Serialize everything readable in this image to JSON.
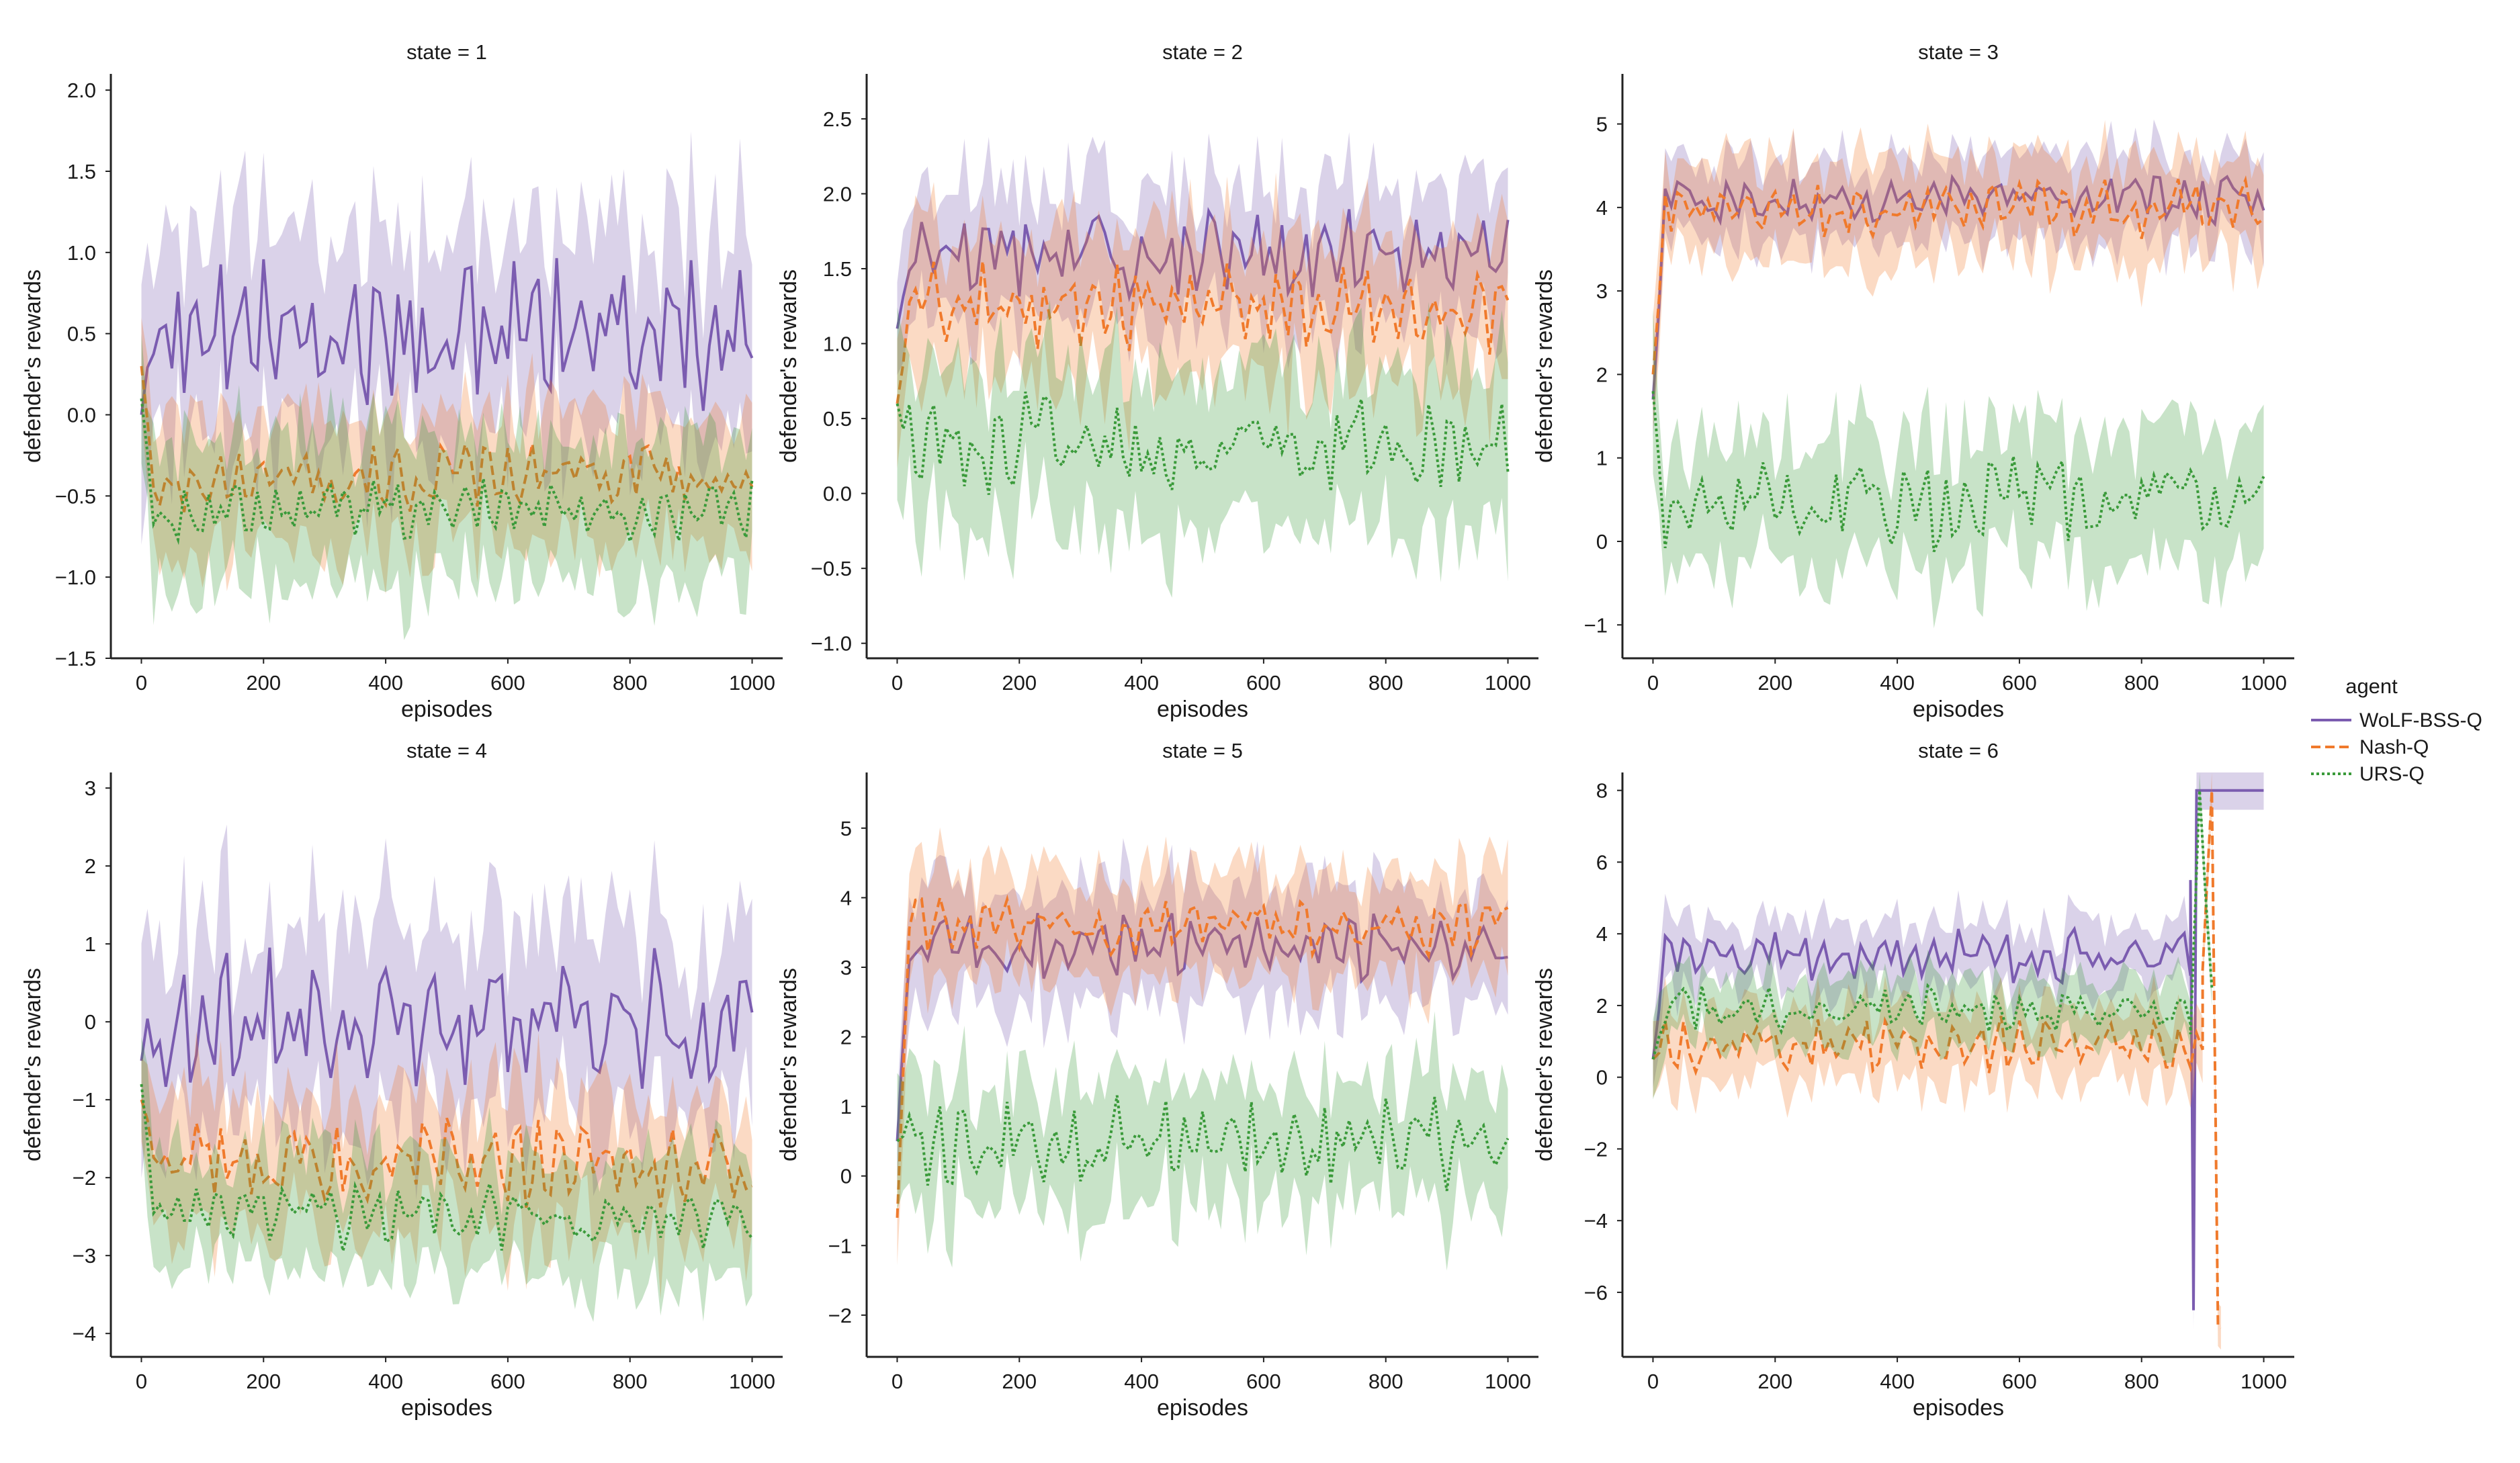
{
  "figure": {
    "legend_title": "agent",
    "legend_position": "right-center",
    "xlabel": "episodes",
    "ylabel": "defender's rewards"
  },
  "agents": [
    {
      "name": "WoLF-BSS-Q",
      "color": "#7b5cb0",
      "dash": "solid"
    },
    {
      "name": "Nash-Q",
      "color": "#f07a2c",
      "dash": "dashed"
    },
    {
      "name": "URS-Q",
      "color": "#3a9a3a",
      "dash": "dotted"
    }
  ],
  "chart_data": [
    {
      "type": "line",
      "title": "state = 1",
      "xlabel": "episodes",
      "ylabel": "defender's rewards",
      "xlim": [
        -50,
        1050
      ],
      "ylim": [
        -1.5,
        2.1
      ],
      "xticks": [
        0,
        200,
        400,
        600,
        800,
        1000
      ],
      "yticks": [
        -1.5,
        -1.0,
        -0.5,
        0.0,
        0.5,
        1.0,
        1.5,
        2.0
      ],
      "ytick_labels": [
        "−1.5",
        "−1.0",
        "−0.5",
        "0.0",
        "0.5",
        "1.0",
        "1.5",
        "2.0"
      ],
      "series": [
        {
          "name": "WoLF-BSS-Q",
          "mean": 0.5,
          "amp": 0.35,
          "band": 0.6,
          "start": 0.0,
          "seed": 11
        },
        {
          "name": "Nash-Q",
          "mean": -0.38,
          "amp": 0.15,
          "band": 0.42,
          "start": 0.3,
          "seed": 12
        },
        {
          "name": "URS-Q",
          "mean": -0.6,
          "amp": 0.15,
          "band": 0.45,
          "start": 0.1,
          "seed": 13
        }
      ]
    },
    {
      "type": "line",
      "title": "state = 2",
      "xlabel": "episodes",
      "ylabel": "defender's rewards",
      "xlim": [
        -50,
        1050
      ],
      "ylim": [
        -1.1,
        2.8
      ],
      "xticks": [
        0,
        200,
        400,
        600,
        800,
        1000
      ],
      "yticks": [
        -1.0,
        -0.5,
        0.0,
        0.5,
        1.0,
        1.5,
        2.0,
        2.5
      ],
      "ytick_labels": [
        "−1.0",
        "−0.5",
        "0.0",
        "0.5",
        "1.0",
        "1.5",
        "2.0",
        "2.5"
      ],
      "series": [
        {
          "name": "WoLF-BSS-Q",
          "mean": 1.6,
          "amp": 0.22,
          "band": 0.45,
          "start": 1.1,
          "seed": 21
        },
        {
          "name": "Nash-Q",
          "mean": 1.25,
          "amp": 0.22,
          "band": 0.5,
          "start": 0.6,
          "seed": 22
        },
        {
          "name": "URS-Q",
          "mean": 0.35,
          "amp": 0.25,
          "band": 0.55,
          "start": 0.6,
          "seed": 23
        }
      ]
    },
    {
      "type": "line",
      "title": "state = 3",
      "xlabel": "episodes",
      "ylabel": "defender's rewards",
      "xlim": [
        -50,
        1050
      ],
      "ylim": [
        -1.4,
        5.6
      ],
      "xticks": [
        0,
        200,
        400,
        600,
        800,
        1000
      ],
      "yticks": [
        -1,
        0,
        1,
        2,
        3,
        4,
        5
      ],
      "ytick_labels": [
        "−1",
        "0",
        "1",
        "2",
        "3",
        "4",
        "5"
      ],
      "series": [
        {
          "name": "WoLF-BSS-Q",
          "mean": 4.1,
          "amp": 0.22,
          "band": 0.5,
          "start": 1.7,
          "seed": 31
        },
        {
          "name": "Nash-Q",
          "mean": 4.0,
          "amp": 0.25,
          "band": 0.6,
          "start": 2.0,
          "seed": 32
        },
        {
          "name": "URS-Q",
          "mean": 0.45,
          "amp": 0.4,
          "band": 0.75,
          "start": 1.8,
          "seed": 33
        }
      ]
    },
    {
      "type": "line",
      "title": "state = 4",
      "xlabel": "episodes",
      "ylabel": "defender's rewards",
      "xlim": [
        -50,
        1050
      ],
      "ylim": [
        -4.3,
        3.2
      ],
      "xticks": [
        0,
        200,
        400,
        600,
        800,
        1000
      ],
      "yticks": [
        -4,
        -3,
        -2,
        -1,
        0,
        1,
        2,
        3
      ],
      "ytick_labels": [
        "−4",
        "−3",
        "−2",
        "−1",
        "0",
        "1",
        "2",
        "3"
      ],
      "series": [
        {
          "name": "WoLF-BSS-Q",
          "mean": 0.0,
          "amp": 0.65,
          "band": 1.2,
          "start": -0.5,
          "seed": 41
        },
        {
          "name": "Nash-Q",
          "mean": -1.8,
          "amp": 0.4,
          "band": 0.85,
          "start": -1.0,
          "seed": 42
        },
        {
          "name": "URS-Q",
          "mean": -2.5,
          "amp": 0.3,
          "band": 0.75,
          "start": -0.8,
          "seed": 43
        }
      ]
    },
    {
      "type": "line",
      "title": "state = 5",
      "xlabel": "episodes",
      "ylabel": "defender's rewards",
      "xlim": [
        -50,
        1050
      ],
      "ylim": [
        -2.6,
        5.8
      ],
      "xticks": [
        0,
        200,
        400,
        600,
        800,
        1000
      ],
      "yticks": [
        -2,
        -1,
        0,
        1,
        2,
        3,
        4,
        5
      ],
      "ytick_labels": [
        "−2",
        "−1",
        "0",
        "1",
        "2",
        "3",
        "4",
        "5"
      ],
      "series": [
        {
          "name": "WoLF-BSS-Q",
          "mean": 3.3,
          "amp": 0.35,
          "band": 0.8,
          "start": 0.5,
          "seed": 51
        },
        {
          "name": "Nash-Q",
          "mean": 3.6,
          "amp": 0.3,
          "band": 0.75,
          "start": -0.6,
          "seed": 52
        },
        {
          "name": "URS-Q",
          "mean": 0.5,
          "amp": 0.5,
          "band": 0.9,
          "start": 0.5,
          "seed": 53
        }
      ]
    },
    {
      "type": "line",
      "title": "state = 6",
      "xlabel": "episodes",
      "ylabel": "defender's rewards",
      "xlim": [
        -50,
        1050
      ],
      "ylim": [
        -7.8,
        8.5
      ],
      "xticks": [
        0,
        200,
        400,
        600,
        800,
        1000
      ],
      "yticks": [
        -6,
        -4,
        -2,
        0,
        2,
        4,
        6,
        8
      ],
      "ytick_labels": [
        "−6",
        "−4",
        "−2",
        "0",
        "2",
        "4",
        "6",
        "8"
      ],
      "series": [
        {
          "name": "WoLF-BSS-Q",
          "mean": 3.4,
          "amp": 0.55,
          "band": 0.9,
          "start": 0.5,
          "seed": 61,
          "end": [
            [
              880,
              5.5
            ],
            [
              885,
              -6.5
            ],
            [
              890,
              8.0
            ],
            [
              1000,
              8.0
            ]
          ]
        },
        {
          "name": "Nash-Q",
          "mean": 0.9,
          "amp": 0.55,
          "band": 1.0,
          "start": 0.5,
          "seed": 62,
          "end": [
            [
              900,
              3.0
            ],
            [
              915,
              8.0
            ],
            [
              925,
              -6.9
            ],
            [
              930,
              -7.0
            ]
          ]
        },
        {
          "name": "URS-Q",
          "mean": 1.9,
          "amp": 0.5,
          "band": 0.9,
          "start": 0.5,
          "seed": 63,
          "end": [
            [
              880,
              1.2
            ],
            [
              895,
              8.0
            ],
            [
              905,
              5.0
            ],
            [
              915,
              2.5
            ]
          ]
        }
      ]
    }
  ]
}
